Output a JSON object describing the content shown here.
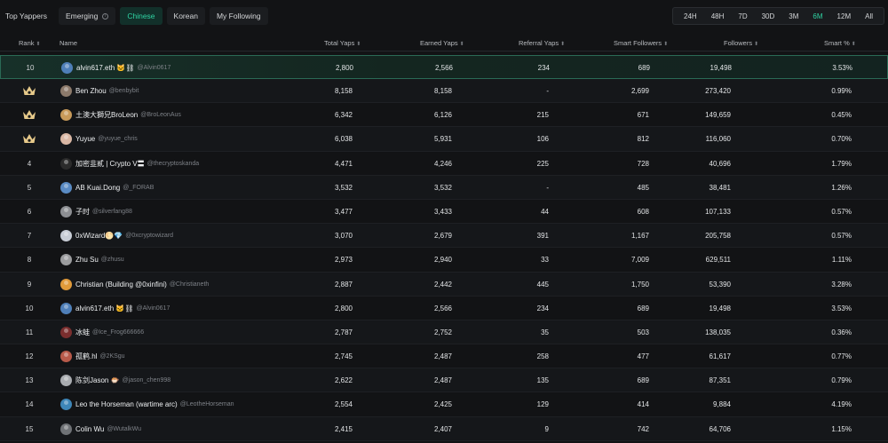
{
  "tabs": [
    {
      "label": "Top Yappers",
      "style": "plain"
    },
    {
      "label": "Emerging",
      "style": "boxed",
      "info": true
    },
    {
      "label": "Chinese",
      "style": "active"
    },
    {
      "label": "Korean",
      "style": "boxed"
    },
    {
      "label": "My Following",
      "style": "boxed"
    }
  ],
  "periods": [
    {
      "label": "24H"
    },
    {
      "label": "48H"
    },
    {
      "label": "7D"
    },
    {
      "label": "30D"
    },
    {
      "label": "3M"
    },
    {
      "label": "6M",
      "active": true
    },
    {
      "label": "12M"
    },
    {
      "label": "All"
    }
  ],
  "columns": {
    "rank": "Rank",
    "name": "Name",
    "total": "Total Yaps",
    "earned": "Earned Yaps",
    "referral": "Referral Yaps",
    "smart_followers": "Smart Followers",
    "followers": "Followers",
    "smart_pct": "Smart %"
  },
  "colors": {
    "accent": "#2fd3a3",
    "crown": "#e6c98a",
    "background": "#121315"
  },
  "rows": [
    {
      "rank": "10",
      "name": "alvin617.eth 🐱⛓",
      "handle": "@Alvin0617",
      "total": "2,800",
      "earned": "2,566",
      "referral": "234",
      "smart": "689",
      "followers": "19,498",
      "pct": "3.53%",
      "avatar": "#4f7fb8",
      "pinned": true
    },
    {
      "rank": "crown",
      "name": "Ben Zhou",
      "handle": "@benbybit",
      "total": "8,158",
      "earned": "8,158",
      "referral": "-",
      "smart": "2,699",
      "followers": "273,420",
      "pct": "0.99%",
      "avatar": "#8c7a6b"
    },
    {
      "rank": "crown",
      "name": "土澳大獅兄BroLeon",
      "handle": "@BroLeonAus",
      "total": "6,342",
      "earned": "6,126",
      "referral": "215",
      "smart": "671",
      "followers": "149,659",
      "pct": "0.45%",
      "avatar": "#c89a5a"
    },
    {
      "rank": "crown",
      "name": "Yuyue",
      "handle": "@yuyue_chris",
      "total": "6,038",
      "earned": "5,931",
      "referral": "106",
      "smart": "812",
      "followers": "116,060",
      "pct": "0.70%",
      "avatar": "#d9b7a4"
    },
    {
      "rank": "4",
      "name": "加密韭貳 | Crypto V〓",
      "handle": "@thecryptoskanda",
      "total": "4,471",
      "earned": "4,246",
      "referral": "225",
      "smart": "728",
      "followers": "40,696",
      "pct": "1.79%",
      "avatar": "#2b2b2b"
    },
    {
      "rank": "5",
      "name": "AB Kuai.Dong",
      "handle": "@_FORAB",
      "total": "3,532",
      "earned": "3,532",
      "referral": "-",
      "smart": "485",
      "followers": "38,481",
      "pct": "1.26%",
      "avatar": "#5a8bc4"
    },
    {
      "rank": "6",
      "name": "子时",
      "handle": "@silverfang88",
      "total": "3,477",
      "earned": "3,433",
      "referral": "44",
      "smart": "608",
      "followers": "107,133",
      "pct": "0.57%",
      "avatar": "#8d8f93"
    },
    {
      "rank": "7",
      "name": "0xWizard🌕💎",
      "handle": "@0xcryptowizard",
      "total": "3,070",
      "earned": "2,679",
      "referral": "391",
      "smart": "1,167",
      "followers": "205,758",
      "pct": "0.57%",
      "avatar": "#c8cdd6"
    },
    {
      "rank": "8",
      "name": "Zhu Su",
      "handle": "@zhusu",
      "total": "2,973",
      "earned": "2,940",
      "referral": "33",
      "smart": "7,009",
      "followers": "629,511",
      "pct": "1.11%",
      "avatar": "#9b9c9e"
    },
    {
      "rank": "9",
      "name": "Christian (Building @0xinfini)",
      "handle": "@Christianeth",
      "total": "2,887",
      "earned": "2,442",
      "referral": "445",
      "smart": "1,750",
      "followers": "53,390",
      "pct": "3.28%",
      "avatar": "#e09a3a"
    },
    {
      "rank": "10",
      "name": "alvin617.eth 🐱⛓",
      "handle": "@Alvin0617",
      "total": "2,800",
      "earned": "2,566",
      "referral": "234",
      "smart": "689",
      "followers": "19,498",
      "pct": "3.53%",
      "avatar": "#4f7fb8"
    },
    {
      "rank": "11",
      "name": "冰蛙",
      "handle": "@Ice_Frog666666",
      "total": "2,787",
      "earned": "2,752",
      "referral": "35",
      "smart": "503",
      "followers": "138,035",
      "pct": "0.36%",
      "avatar": "#7a2e2e"
    },
    {
      "rank": "12",
      "name": "孤鹤.hl",
      "handle": "@2KSgu",
      "total": "2,745",
      "earned": "2,487",
      "referral": "258",
      "smart": "477",
      "followers": "61,617",
      "pct": "0.77%",
      "avatar": "#b85a4a"
    },
    {
      "rank": "13",
      "name": "陈剑Jason 🐡",
      "handle": "@jason_chen998",
      "total": "2,622",
      "earned": "2,487",
      "referral": "135",
      "smart": "689",
      "followers": "87,351",
      "pct": "0.79%",
      "avatar": "#a9acb0"
    },
    {
      "rank": "14",
      "name": "Leo the Horseman (wartime arc)",
      "handle": "@LeotheHorseman",
      "total": "2,554",
      "earned": "2,425",
      "referral": "129",
      "smart": "414",
      "followers": "9,884",
      "pct": "4.19%",
      "avatar": "#3e86b8"
    },
    {
      "rank": "15",
      "name": "Colin Wu",
      "handle": "@WutalkWu",
      "total": "2,415",
      "earned": "2,407",
      "referral": "9",
      "smart": "742",
      "followers": "64,706",
      "pct": "1.15%",
      "avatar": "#6f7276"
    }
  ]
}
